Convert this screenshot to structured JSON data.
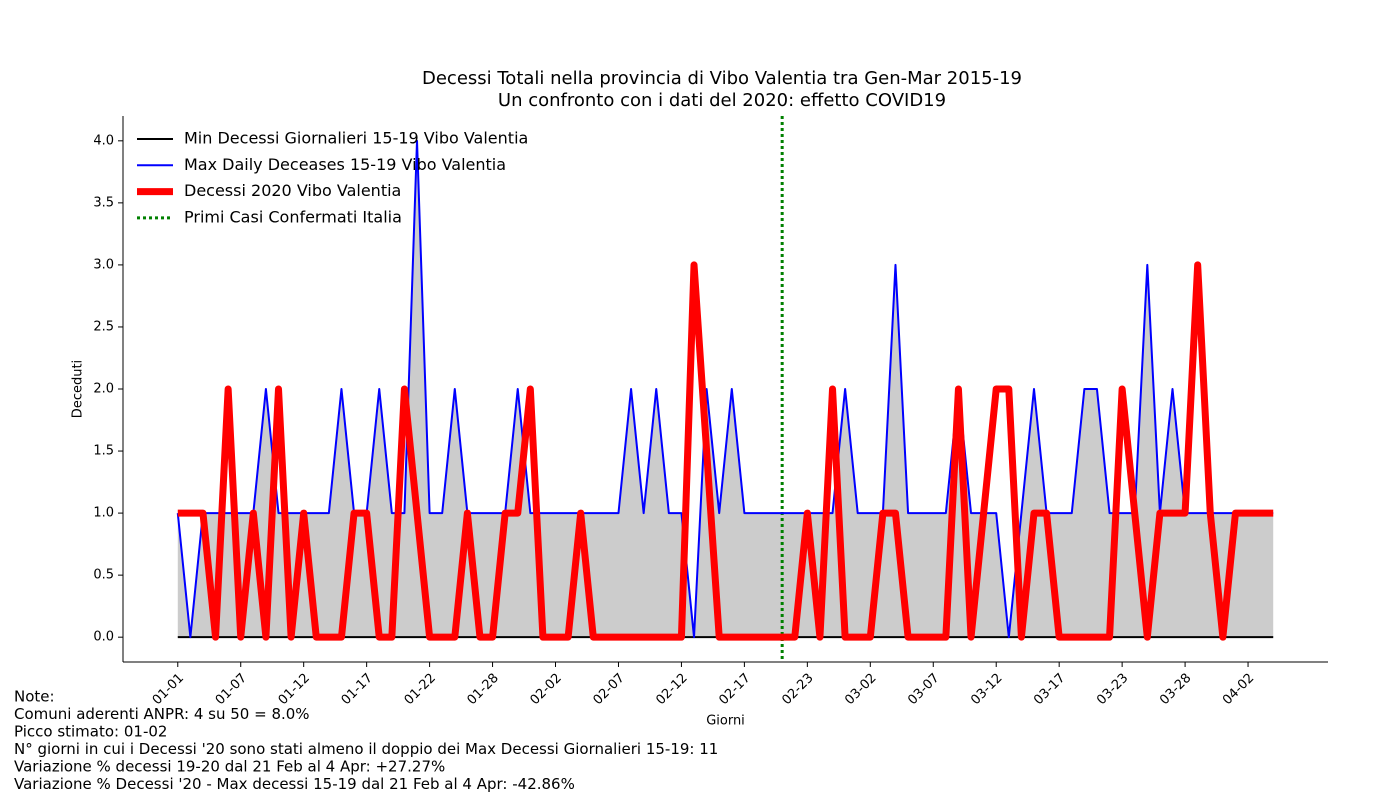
{
  "chart_data": {
    "type": "line",
    "title": [
      "Decessi Totali nella provincia di Vibo Valentia tra Gen-Mar 2015-19",
      "Un confronto con i dati del 2020: effetto COVID19"
    ],
    "xlabel": "Giorni",
    "ylabel": "Deceduti",
    "categories": [
      "01-01",
      null,
      null,
      null,
      null,
      "01-07",
      null,
      null,
      null,
      null,
      "01-12",
      null,
      null,
      null,
      null,
      "01-17",
      null,
      null,
      null,
      null,
      "01-22",
      null,
      null,
      null,
      null,
      "01-28",
      null,
      null,
      null,
      null,
      "02-02",
      null,
      null,
      null,
      null,
      "02-07",
      null,
      null,
      null,
      null,
      "02-12",
      null,
      null,
      null,
      null,
      "02-17",
      null,
      null,
      null,
      null,
      "02-23",
      null,
      null,
      null,
      null,
      "03-02",
      null,
      null,
      null,
      null,
      "03-07",
      null,
      null,
      null,
      null,
      "03-12",
      null,
      null,
      null,
      null,
      "03-17",
      null,
      null,
      null,
      null,
      "03-23",
      null,
      null,
      null,
      null,
      "03-28",
      null,
      null,
      null,
      null,
      "04-02",
      null,
      null
    ],
    "xlim": [
      -4.35,
      91.35
    ],
    "ylim": [
      -0.2,
      4.2
    ],
    "yticks": [
      {
        "value": 0,
        "label": "0.0"
      },
      0.5,
      {
        "value": 1,
        "label": "1.0"
      },
      1.5,
      {
        "value": 2,
        "label": "2.0"
      },
      2.5,
      {
        "value": 3,
        "label": "3.0"
      },
      3.5,
      {
        "value": 4,
        "label": "4.0"
      }
    ],
    "fill_color": "#cccccc",
    "legend": "upper left",
    "series": [
      {
        "name": "Min Decessi Giornalieri 15-19 Vibo Valentia",
        "color": "#000000",
        "width": 2,
        "values": [
          0,
          0,
          0,
          0,
          0,
          0,
          0,
          0,
          0,
          0,
          0,
          0,
          0,
          0,
          0,
          0,
          0,
          0,
          0,
          0,
          0,
          0,
          0,
          0,
          0,
          0,
          0,
          0,
          0,
          0,
          0,
          0,
          0,
          0,
          0,
          0,
          0,
          0,
          0,
          0,
          0,
          0,
          0,
          0,
          0,
          0,
          0,
          0,
          0,
          0,
          0,
          0,
          0,
          0,
          0,
          0,
          0,
          0,
          0,
          0,
          0,
          0,
          0,
          0,
          0,
          0,
          0,
          0,
          0,
          0,
          0,
          0,
          0,
          0,
          0,
          0,
          0,
          0,
          0,
          0,
          0,
          0,
          0,
          0,
          0,
          0,
          0,
          0
        ]
      },
      {
        "name": "Max Daily Deceases 15-19 Vibo Valentia",
        "color": "#0000ff",
        "width": 2,
        "values": [
          1,
          0,
          1,
          1,
          1,
          1,
          1,
          2,
          1,
          1,
          1,
          1,
          1,
          2,
          1,
          1,
          2,
          1,
          1,
          4,
          1,
          1,
          2,
          1,
          1,
          1,
          1,
          2,
          1,
          1,
          1,
          1,
          1,
          1,
          1,
          1,
          2,
          1,
          2,
          1,
          1,
          0,
          2,
          1,
          2,
          1,
          1,
          1,
          1,
          1,
          1,
          1,
          1,
          2,
          1,
          1,
          1,
          3,
          1,
          1,
          1,
          1,
          2,
          1,
          1,
          1,
          0,
          1,
          2,
          1,
          1,
          1,
          2,
          2,
          1,
          1,
          1,
          3,
          1,
          2,
          1,
          1,
          1,
          1,
          1,
          1,
          1,
          1
        ]
      },
      {
        "name": "Decessi 2020 Vibo Valentia",
        "color": "#ff0000",
        "width": 7,
        "values": [
          1,
          1,
          1,
          0,
          2,
          0,
          1,
          0,
          2,
          0,
          1,
          0,
          0,
          0,
          1,
          1,
          0,
          0,
          2,
          1,
          0,
          0,
          0,
          1,
          0,
          0,
          1,
          1,
          2,
          0,
          0,
          0,
          1,
          0,
          0,
          0,
          0,
          0,
          0,
          0,
          0,
          3,
          1.5,
          0,
          0,
          0,
          0,
          0,
          0,
          0,
          1,
          0,
          2,
          0,
          0,
          0,
          1,
          1,
          0,
          0,
          0,
          0,
          2,
          0,
          1,
          2,
          2,
          0,
          1,
          1,
          0,
          0,
          0,
          0,
          0,
          2,
          1,
          0,
          1,
          1,
          1,
          3,
          1,
          0,
          1,
          1,
          1,
          1
        ]
      }
    ],
    "vline": {
      "name": "Primi Casi Confermati Italia",
      "x": 48,
      "color": "#008000"
    },
    "notes": [
      "Note:",
      "Comuni aderenti ANPR: 4 su 50 = 8.0%",
      "Picco stimato: 01-02",
      "N° giorni in cui i Decessi '20 sono stati almeno il doppio dei Max Decessi Giornalieri 15-19: 11",
      "Variazione % decessi 19-20 dal 21 Feb al 4 Apr: +27.27%",
      "Variazione % Decessi '20 - Max decessi 15-19 dal 21 Feb al 4 Apr: -42.86%"
    ]
  }
}
